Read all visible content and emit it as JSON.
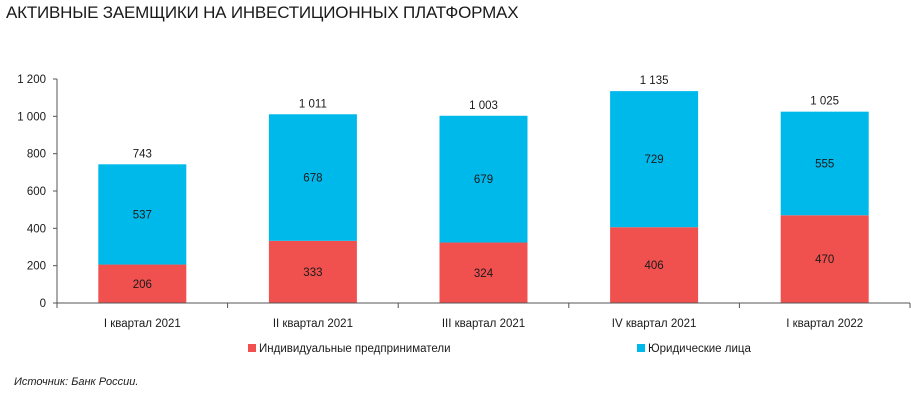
{
  "chart_data": {
    "type": "bar",
    "stacked": true,
    "title": "АКТИВНЫЕ ЗАЕМЩИКИ НА ИНВЕСТИЦИОННЫХ ПЛАТФОРМАХ",
    "categories": [
      "I квартал 2021",
      "II квартал 2021",
      "III квартал 2021",
      "IV  квартал 2021",
      "I квартал 2022"
    ],
    "series": [
      {
        "name": "Индивидуальные предприниматели",
        "color": "#f0514f",
        "values": [
          206,
          333,
          324,
          406,
          470
        ]
      },
      {
        "name": "Юридические лица",
        "color": "#00b9eb",
        "values": [
          537,
          678,
          679,
          729,
          555
        ]
      }
    ],
    "totals": [
      "743",
      "1 011",
      "1 003",
      "1 135",
      "1 025"
    ],
    "ylim": [
      0,
      1200
    ],
    "yticks": [
      0,
      200,
      400,
      600,
      800,
      1000,
      1200
    ],
    "ytick_labels": [
      "0",
      "200",
      "400",
      "600",
      "800",
      "1 000",
      "1 200"
    ],
    "grid": false,
    "legend_position": "bottom",
    "xlabel": "",
    "ylabel": ""
  },
  "source": "Источник: Банк России."
}
